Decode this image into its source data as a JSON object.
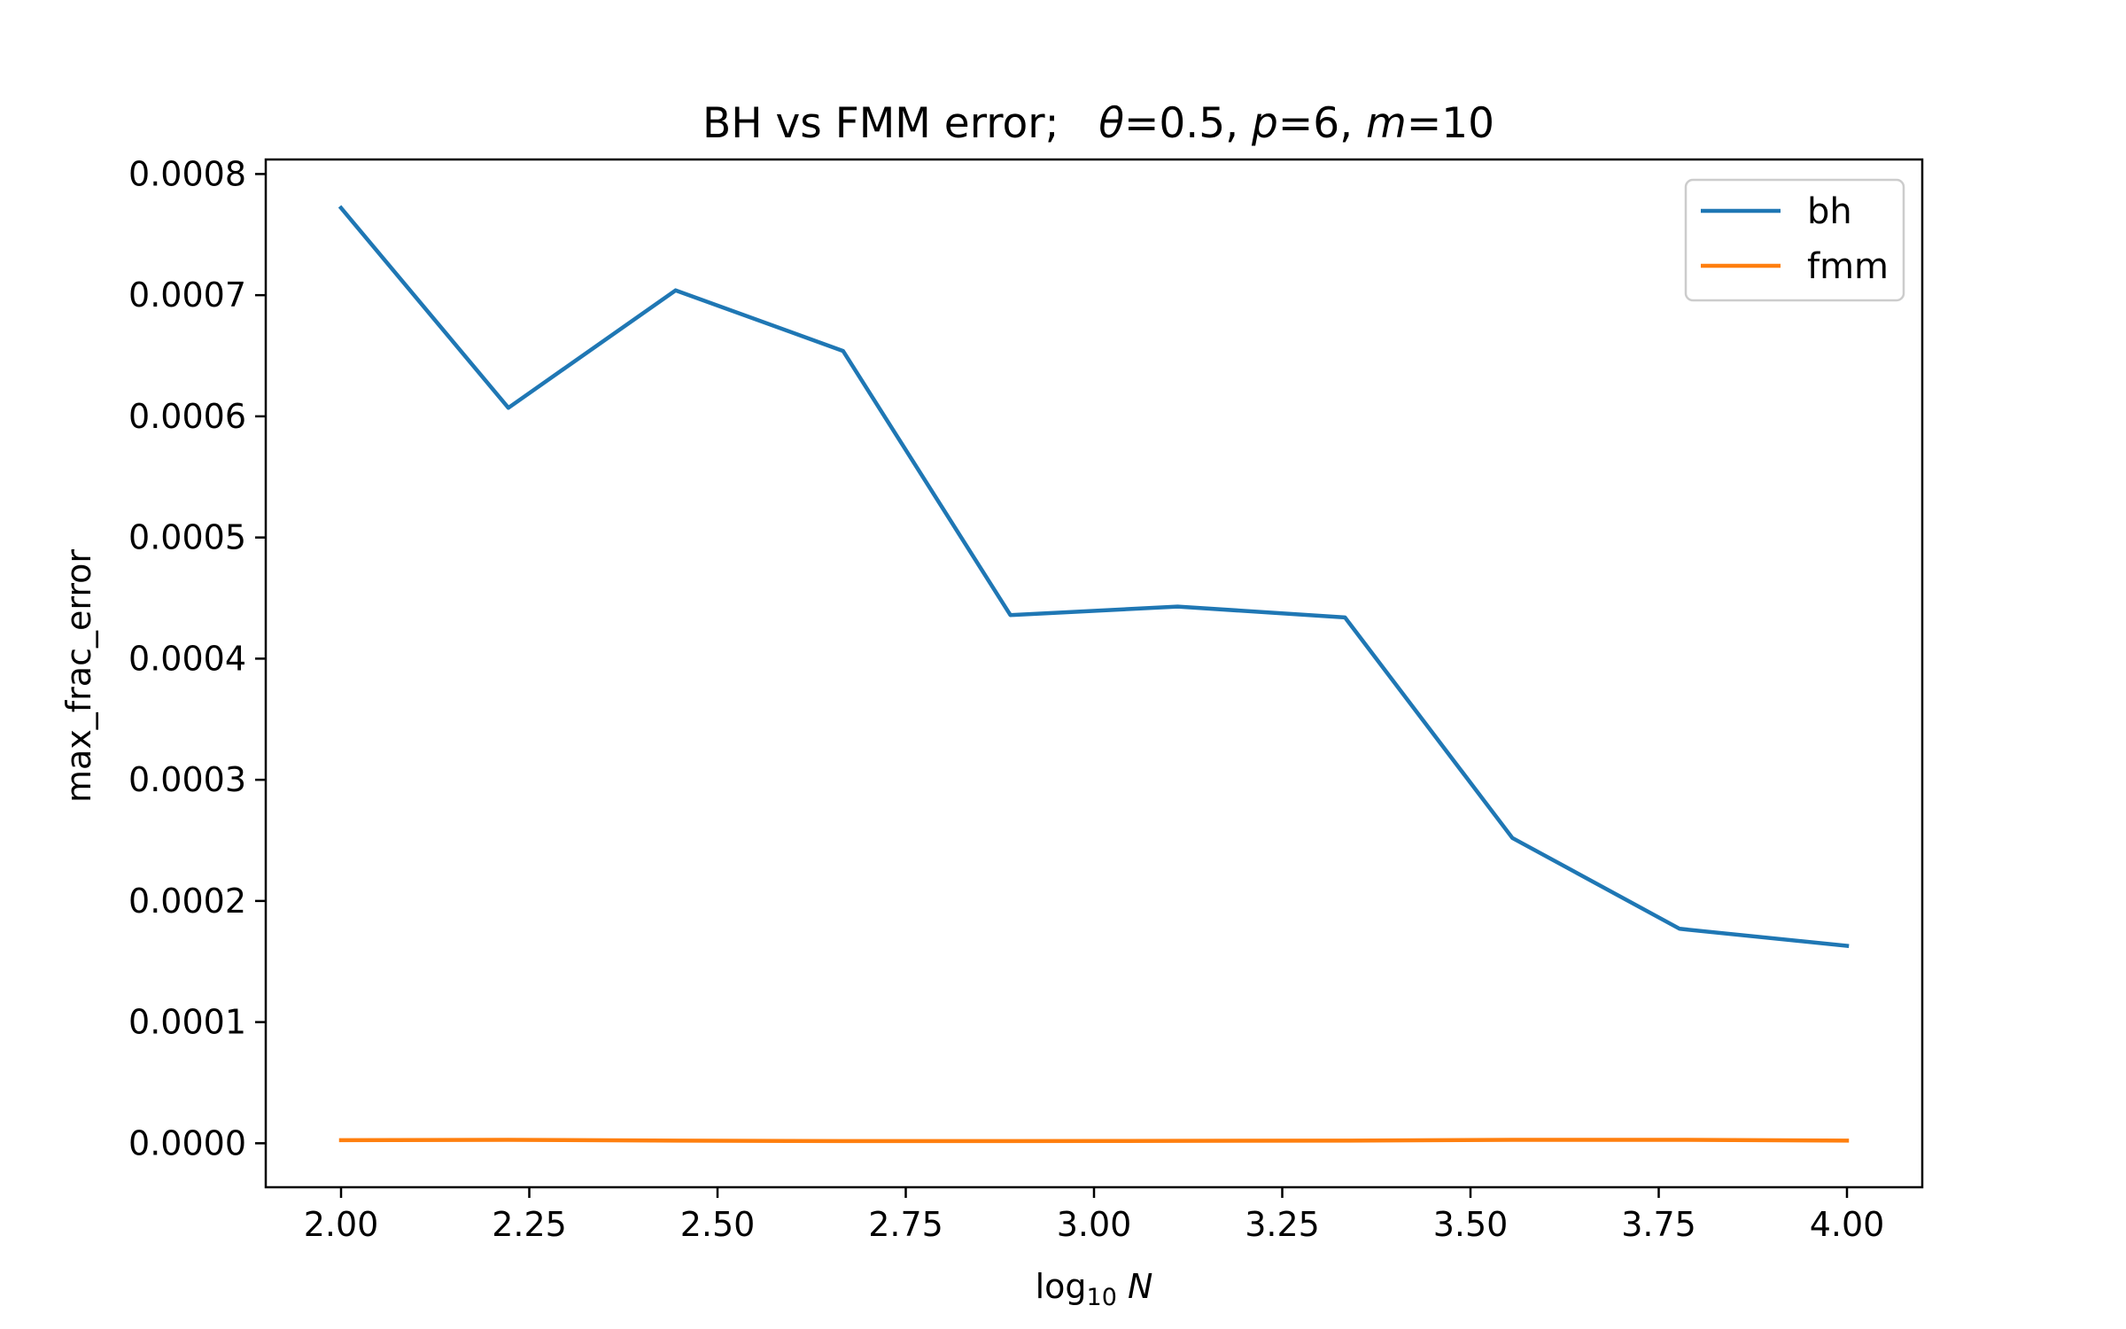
{
  "chart_data": {
    "type": "line",
    "title": {
      "main": "BH vs FMM error;",
      "params": [
        {
          "sym": "θ",
          "rest": "=0.5, "
        },
        {
          "sym": "p",
          "rest": "=6, "
        },
        {
          "sym": "m",
          "rest": "=10"
        }
      ]
    },
    "xlabel": {
      "prefix": "log",
      "sub": "10",
      "var": "N"
    },
    "ylabel": "max_frac_error",
    "x": [
      2.0,
      2.2222,
      2.4444,
      2.6667,
      2.8889,
      3.1111,
      3.3333,
      3.5556,
      3.7778,
      4.0
    ],
    "series": [
      {
        "name": "bh",
        "color": "#1f77b4",
        "values": [
          0.000772,
          0.000607,
          0.000704,
          0.000654,
          0.000436,
          0.000443,
          0.000434,
          0.000252,
          0.000177,
          0.000163
        ]
      },
      {
        "name": "fmm",
        "color": "#ff7f0e",
        "values": [
          2.5e-06,
          2.8e-06,
          2.2e-06,
          1.8e-06,
          1.8e-06,
          2e-06,
          2.2e-06,
          2.8e-06,
          2.8e-06,
          2.2e-06
        ]
      }
    ],
    "xlim": [
      1.9,
      4.1
    ],
    "ylim": [
      -3.63e-05,
      0.000812
    ],
    "xticks": [
      2.0,
      2.25,
      2.5,
      2.75,
      3.0,
      3.25,
      3.5,
      3.75,
      4.0
    ],
    "xtick_labels": [
      "2.00",
      "2.25",
      "2.50",
      "2.75",
      "3.00",
      "3.25",
      "3.50",
      "3.75",
      "4.00"
    ],
    "yticks": [
      0.0,
      0.0001,
      0.0002,
      0.0003,
      0.0004,
      0.0005,
      0.0006,
      0.0007,
      0.0008
    ],
    "ytick_labels": [
      "0.0000",
      "0.0001",
      "0.0002",
      "0.0003",
      "0.0004",
      "0.0005",
      "0.0006",
      "0.0007",
      "0.0008"
    ],
    "legend": "top-right",
    "grid": false
  }
}
